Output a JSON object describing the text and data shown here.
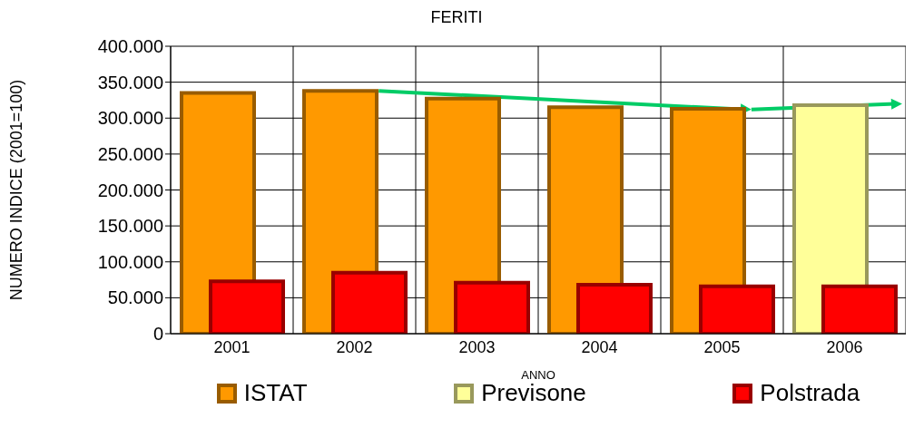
{
  "chart_data": {
    "type": "bar",
    "title": "FERITI",
    "xlabel": "ANNO",
    "ylabel": "NUMERO INDICE (2001=100)",
    "categories": [
      "2001",
      "2002",
      "2003",
      "2004",
      "2005",
      "2006"
    ],
    "series": [
      {
        "name": "ISTAT",
        "color": "#ff9900",
        "values": [
          335000,
          338000,
          327000,
          315000,
          313000,
          null
        ]
      },
      {
        "name": "Previsone",
        "color": "#ffff99",
        "values": [
          null,
          null,
          null,
          null,
          null,
          318000
        ]
      },
      {
        "name": "Polstrada",
        "color": "#ff0000",
        "values": [
          73000,
          85000,
          71000,
          68000,
          66000,
          66000
        ]
      }
    ],
    "ylim": [
      0,
      400000
    ],
    "yticks": [
      {
        "value": 0,
        "label": "0"
      },
      {
        "value": 50000,
        "label": "50.000"
      },
      {
        "value": 100000,
        "label": "100.000"
      },
      {
        "value": 150000,
        "label": "150.000"
      },
      {
        "value": 200000,
        "label": "200.000"
      },
      {
        "value": 250000,
        "label": "250.000"
      },
      {
        "value": 300000,
        "label": "300.000"
      },
      {
        "value": 350000,
        "label": "350.000"
      },
      {
        "value": 400000,
        "label": "400.000"
      }
    ],
    "grid": true,
    "legend": "bottom"
  }
}
